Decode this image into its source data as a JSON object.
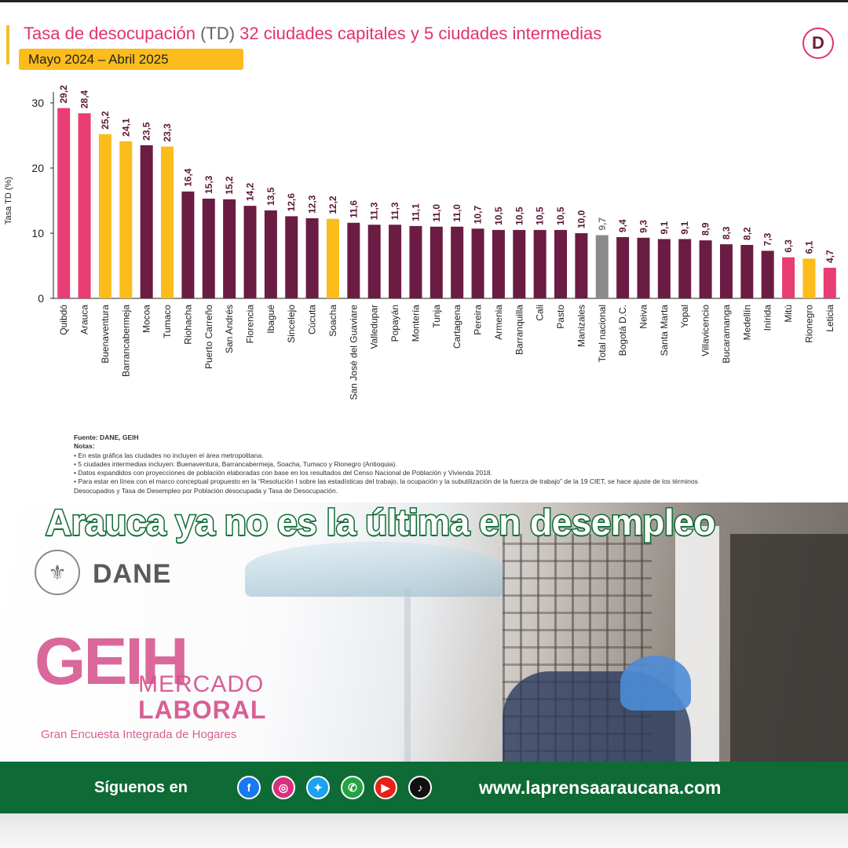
{
  "header": {
    "title_prefix": "Tasa de desocupación ",
    "title_td": "(TD)",
    "title_suffix": " 32 ciudades capitales y 5 ciudades intermedias",
    "period": "Mayo 2024 – Abril 2025",
    "logo_letter": "D"
  },
  "colors": {
    "capital_default": "#6b1c42",
    "capital_highlight": "#e83e73",
    "intermediate": "#fbbc1c",
    "national": "#8a8a8a",
    "title": "#e0336d",
    "footer_green": "#0f6b35"
  },
  "chart_data": {
    "type": "bar",
    "ylabel": "Tasa TD (%)",
    "ylim": [
      0,
      30
    ],
    "yticks": [
      "0",
      "10",
      "20",
      "30"
    ],
    "grid": false,
    "categories": [
      "Quibdó",
      "Arauca",
      "Buenaventura",
      "Barrancabermeja",
      "Mocoa",
      "Tumaco",
      "Riohacha",
      "Puerto Carreño",
      "San Andrés",
      "Florencia",
      "Ibagué",
      "Sincelejo",
      "Cúcuta",
      "Soacha",
      "San José del Guaviare",
      "Valledupar",
      "Popayán",
      "Montería",
      "Tunja",
      "Cartagena",
      "Pereira",
      "Armenia",
      "Barranquilla",
      "Cali",
      "Pasto",
      "Manizales",
      "Total nacional",
      "Bogotá D.C.",
      "Neiva",
      "Santa Marta",
      "Yopal",
      "Villavicencio",
      "Bucaramanga",
      "Medellín",
      "Inírida",
      "Mitú",
      "Rionegro",
      "Leticia"
    ],
    "values": [
      29.2,
      28.4,
      25.2,
      24.1,
      23.5,
      23.3,
      16.4,
      15.3,
      15.2,
      14.2,
      13.5,
      12.6,
      12.3,
      12.2,
      11.6,
      11.3,
      11.3,
      11.1,
      11.0,
      11.0,
      10.7,
      10.5,
      10.5,
      10.5,
      10.5,
      10.0,
      9.7,
      9.4,
      9.3,
      9.1,
      9.1,
      8.9,
      8.3,
      8.2,
      7.3,
      6.3,
      6.1,
      4.7
    ],
    "value_labels": [
      "29,2",
      "28,4",
      "25,2",
      "24,1",
      "23,5",
      "23,3",
      "16,4",
      "15,3",
      "15,2",
      "14,2",
      "13,5",
      "12,6",
      "12,3",
      "12,2",
      "11,6",
      "11,3",
      "11,3",
      "11,1",
      "11,0",
      "11,0",
      "10,7",
      "10,5",
      "10,5",
      "10,5",
      "10,5",
      "10,0",
      "9,7",
      "9,4",
      "9,3",
      "9,1",
      "9,1",
      "8,9",
      "8,3",
      "8,2",
      "7,3",
      "6,3",
      "6,1",
      "4,7"
    ],
    "bar_color_keys": [
      "capital_highlight",
      "capital_highlight",
      "intermediate",
      "intermediate",
      "capital_default",
      "intermediate",
      "capital_default",
      "capital_default",
      "capital_default",
      "capital_default",
      "capital_default",
      "capital_default",
      "capital_default",
      "intermediate",
      "capital_default",
      "capital_default",
      "capital_default",
      "capital_default",
      "capital_default",
      "capital_default",
      "capital_default",
      "capital_default",
      "capital_default",
      "capital_default",
      "capital_default",
      "capital_default",
      "national",
      "capital_default",
      "capital_default",
      "capital_default",
      "capital_default",
      "capital_default",
      "capital_default",
      "capital_default",
      "capital_default",
      "capital_highlight",
      "intermediate",
      "capital_highlight"
    ]
  },
  "notes": {
    "source": "Fuente: DANE, GEIH",
    "heading": "Notas:",
    "items": [
      "• En esta gráfica las ciudades no incluyen el área metropolitana.",
      "• 5 ciudades intermedias incluyen: Buenaventura, Barrancabermeja, Soacha, Tumaco y Rionegro (Antioquia).",
      "• Datos expandidos con proyecciones de población elaboradas con base en los resultados del Censo Nacional de Población y Vivienda 2018.",
      "• Para estar en línea con el marco conceptual propuesto en la “Resolución I sobre las estadísticas del trabajo, la ocupación y la subutilización de la fuerza de trabajo” de la 19 CIET, se hace ajuste de los términos",
      "Desocupados y Tasa de Desempleo por Población desocupada y Tasa de Desocupación."
    ]
  },
  "headline": "Arauca ya no es la última en desempleo",
  "branding": {
    "dane": "DANE",
    "geih": "GEIH",
    "mercado": "MERCADO",
    "laboral": "LABORAL",
    "gran_encuesta": "Gran Encuesta Integrada de Hogares"
  },
  "footer": {
    "follow_label": "Síguenos en",
    "website": "www.laprensaaraucana.com",
    "social_icons": [
      {
        "name": "facebook-icon",
        "glyph": "f",
        "color": "#1877f2"
      },
      {
        "name": "instagram-icon",
        "glyph": "◎",
        "color": "#d6307e"
      },
      {
        "name": "twitter-icon",
        "glyph": "✦",
        "color": "#1da1f2"
      },
      {
        "name": "whatsapp-icon",
        "glyph": "✆",
        "color": "#25a244"
      },
      {
        "name": "youtube-icon",
        "glyph": "▶",
        "color": "#e62117"
      },
      {
        "name": "tiktok-icon",
        "glyph": "♪",
        "color": "#111111"
      }
    ]
  }
}
